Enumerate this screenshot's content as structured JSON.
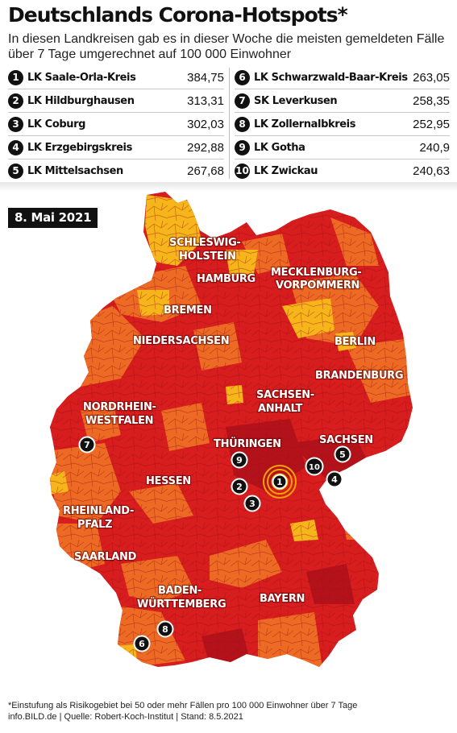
{
  "title": "Deutschlands Corona-Hotspots*",
  "subtitle": "In diesen Landkreisen gab es in dieser Woche die meisten gemeldeten Fälle über 7 Tage umgerechnet auf 100 000 Einwohner",
  "hotspots_left": [
    {
      "rank": "1",
      "name": "LK Saale-Orla-Kreis",
      "value": "384,75"
    },
    {
      "rank": "2",
      "name": "LK Hildburghausen",
      "value": "313,31"
    },
    {
      "rank": "3",
      "name": "LK Coburg",
      "value": "302,03"
    },
    {
      "rank": "4",
      "name": "LK Erzgebirgskreis",
      "value": "292,88"
    },
    {
      "rank": "5",
      "name": "LK Mittelsachsen",
      "value": "267,68"
    }
  ],
  "hotspots_right": [
    {
      "rank": "6",
      "name": "LK Schwarzwald-Baar-Kreis",
      "value": "263,05"
    },
    {
      "rank": "7",
      "name": "SK Leverkusen",
      "value": "258,35"
    },
    {
      "rank": "8",
      "name": "LK Zollernalbkreis",
      "value": "252,95"
    },
    {
      "rank": "9",
      "name": "LK Gotha",
      "value": "240,9"
    },
    {
      "rank": "10",
      "name": "LK Zwickau",
      "value": "240,63"
    }
  ],
  "map": {
    "date_badge": "8. Mai 2021",
    "state_labels": {
      "schleswig_1": "SCHLESWIG-",
      "schleswig_2": "HOLSTEIN",
      "hamburg": "HAMBURG",
      "mecklenburg_1": "MECKLENBURG-",
      "mecklenburg_2": "VORPOMMERN",
      "bremen": "BREMEN",
      "niedersachsen": "NIEDERSACHSEN",
      "berlin": "BERLIN",
      "brandenburg": "BRANDENBURG",
      "sachsen_anhalt_1": "SACHSEN-",
      "sachsen_anhalt_2": "ANHALT",
      "nrw_1": "NORDRHEIN-",
      "nrw_2": "WESTFALEN",
      "thueringen": "THÜRINGEN",
      "sachsen": "SACHSEN",
      "hessen": "HESSEN",
      "rheinland_1": "RHEINLAND-",
      "rheinland_2": "PFALZ",
      "saarland": "SAARLAND",
      "bw_1": "BADEN-",
      "bw_2": "WÜRTTEMBERG",
      "bayern": "BAYERN"
    },
    "colors": {
      "very_high": "#d71d1d",
      "high": "#ec6a23",
      "medium": "#f6b51b",
      "dark_red": "#b3121a",
      "highlight": "#f5a300"
    }
  },
  "footnote": {
    "line1": "*Einstufung als Risikogebiet bei 50 oder mehr Fällen pro 100 000 Einwohner über 7 Tage",
    "line2": "info.BILD.de | Quelle: Robert-Koch-Institut | Stand: 8.5.2021"
  }
}
